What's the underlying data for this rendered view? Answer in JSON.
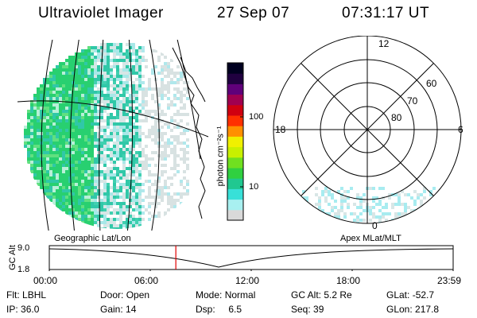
{
  "header": {
    "instrument": "Ultraviolet Imager",
    "date": "27 Sep 07",
    "time": "07:31:17 UT"
  },
  "colorbar": {
    "unit_label": "photon cm⁻²s⁻¹",
    "ticks": [
      "100",
      "10"
    ],
    "scale": "log",
    "colors": [
      "#d9d9d9",
      "#a8f0f0",
      "#38e0d8",
      "#20c890",
      "#30d040",
      "#70e020",
      "#c8f000",
      "#f0f000",
      "#ff9000",
      "#ff3000",
      "#d00010",
      "#a00050",
      "#60007a",
      "#200040",
      "#000020"
    ]
  },
  "polar_plot": {
    "mlt_labels": {
      "top": "12",
      "left": "18",
      "right": "6",
      "bottom": "0"
    },
    "lat_labels": [
      "60",
      "70",
      "80"
    ]
  },
  "timeline": {
    "left_caption": "Geographic Lat/Lon",
    "right_caption": "Apex MLat/MLT",
    "axis_title": "GC Alt",
    "y_ticks": [
      "9.0",
      "1.8"
    ],
    "x_ticks": [
      "00:00",
      "06:00",
      "12:00",
      "18:00",
      "23:59"
    ],
    "current_time_hours": 7.52,
    "marker_color": "#e00000"
  },
  "info": {
    "row1": [
      {
        "label": "Flt:",
        "value": "LBHL"
      },
      {
        "label": "Door:",
        "value": "Open"
      },
      {
        "label": "Mode:",
        "value": "Normal"
      },
      {
        "label": "GC Alt:",
        "value": "5.2 Re"
      },
      {
        "label": "GLat:",
        "value": "-52.7"
      }
    ],
    "row2": [
      {
        "label": "IP:",
        "value": "36.0"
      },
      {
        "label": "Gain:",
        "value": "14"
      },
      {
        "label": "Dsp:",
        "value": "6.5"
      },
      {
        "label": "Seq:",
        "value": "39"
      },
      {
        "label": "GLon:",
        "value": "217.8"
      }
    ]
  }
}
